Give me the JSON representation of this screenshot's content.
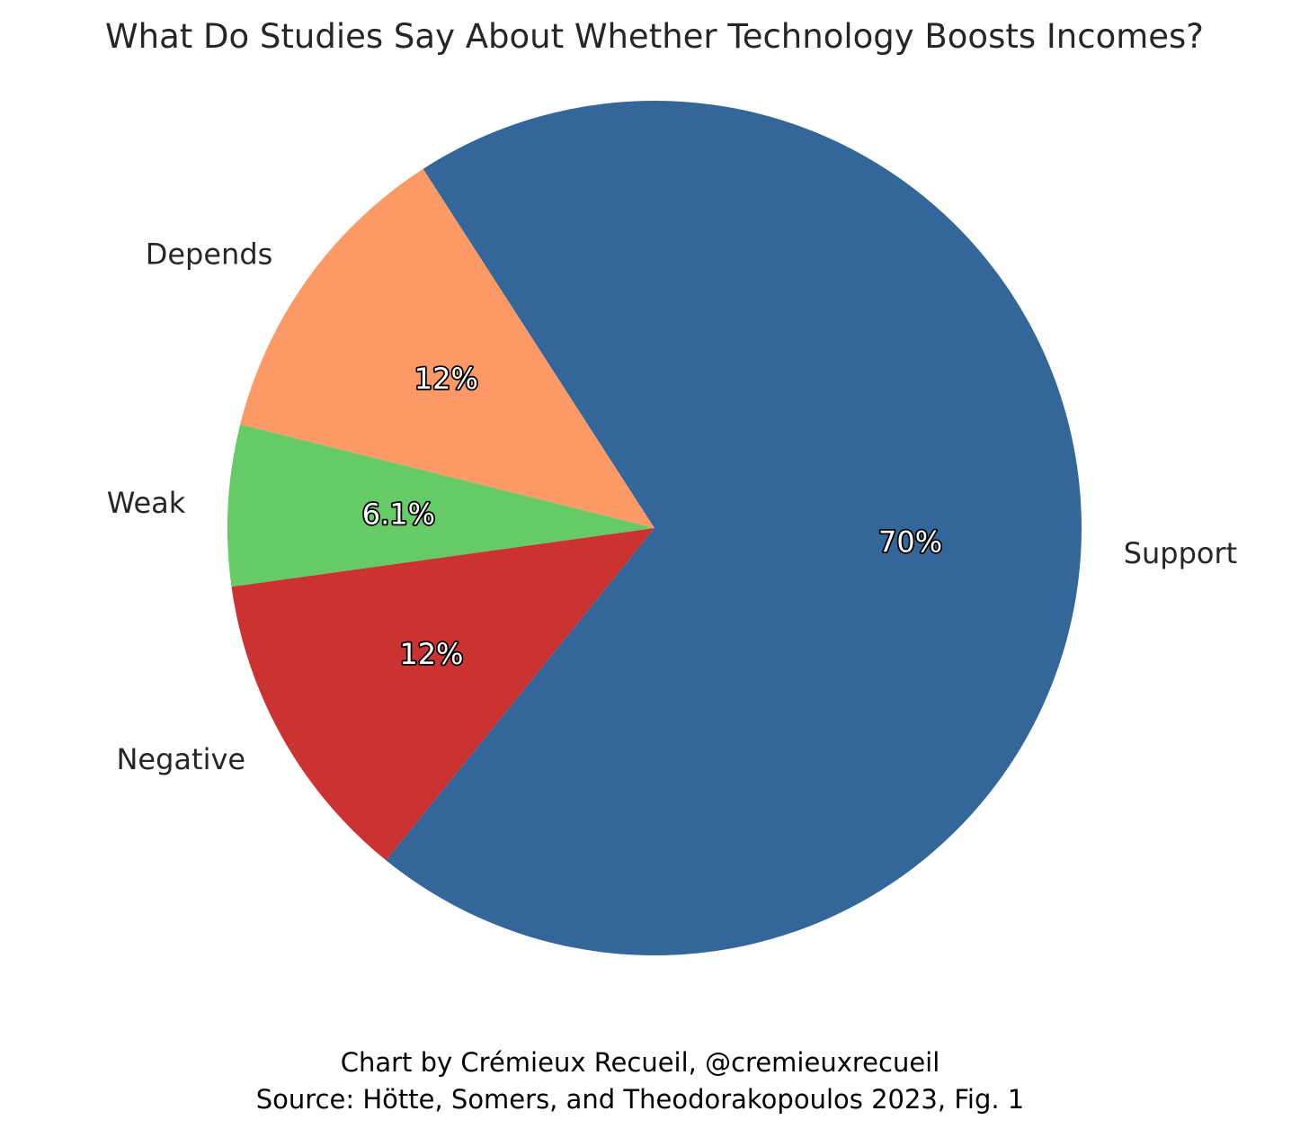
{
  "chart_data": {
    "type": "pie",
    "title": "What Do Studies Say About Whether Technology Boosts Incomes?",
    "start_angle_deg": 122.8,
    "direction": "counterclockwise",
    "slices": [
      {
        "name": "Depends",
        "value": 12.0,
        "pct_label": "12%",
        "color": "#fc9966"
      },
      {
        "name": "Weak",
        "value": 6.1,
        "pct_label": "6.1%",
        "color": "#66cb66"
      },
      {
        "name": "Negative",
        "value": 12.0,
        "pct_label": "12%",
        "color": "#cb3333"
      },
      {
        "name": "Support",
        "value": 70.0,
        "pct_label": "70%",
        "color": "#336699"
      }
    ],
    "caption": [
      "Chart by Crémieux Recueil, @cremieuxrecueil",
      "Source: Hötte, Somers, and Theodorakopoulos 2023, Fig. 1"
    ]
  }
}
